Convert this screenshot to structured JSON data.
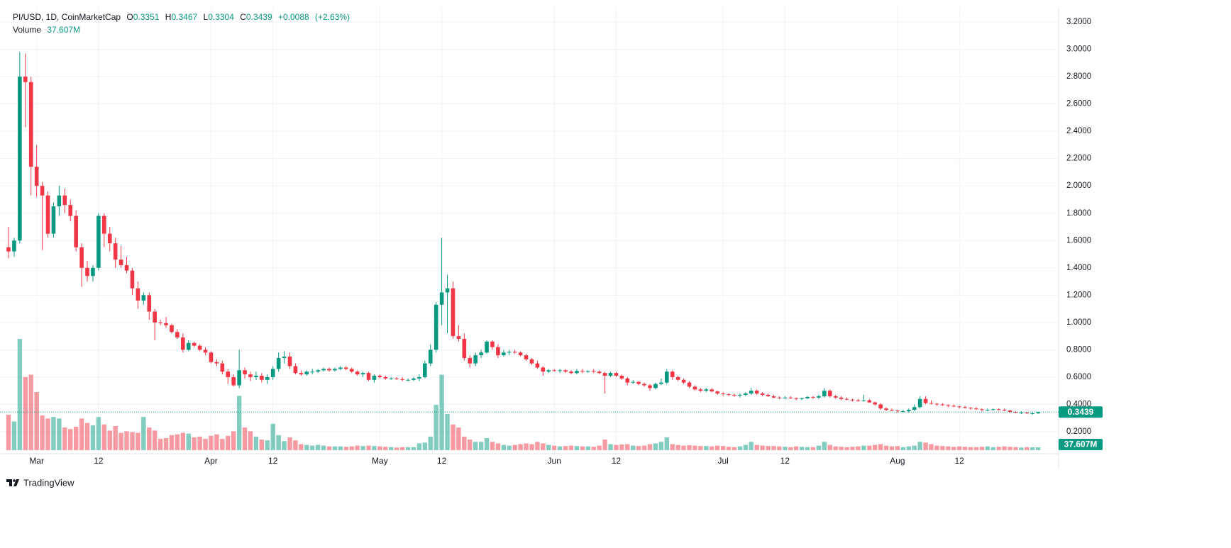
{
  "chart_data": {
    "type": "candlestick",
    "symbol": "PI/USD, 1D, CoinMarketCap",
    "legend_labels": {
      "open": "O",
      "high": "H",
      "low": "L",
      "close": "C"
    },
    "change": {
      "value": 0.0088,
      "label": "+0.0088"
    },
    "change_percent": {
      "value": 2.63,
      "label": "(+2.63%)"
    },
    "volume_title": "Volume",
    "volume_value_label": "37.607M",
    "up_color": "#089981",
    "down_color": "#f23645",
    "grid": true,
    "ylim": [
      0.2,
      3.2
    ],
    "yticks": [
      {
        "value": 0.2,
        "label": "0.2000"
      },
      {
        "value": 0.4,
        "label": "0.4000"
      },
      {
        "value": 0.6,
        "label": "0.6000"
      },
      {
        "value": 0.8,
        "label": "0.8000"
      },
      {
        "value": 1.0,
        "label": "1.0000"
      },
      {
        "value": 1.2,
        "label": "1.2000"
      },
      {
        "value": 1.4,
        "label": "1.4000"
      },
      {
        "value": 1.6,
        "label": "1.6000"
      },
      {
        "value": 1.8,
        "label": "1.8000"
      },
      {
        "value": 2.0,
        "label": "2.0000"
      },
      {
        "value": 2.2,
        "label": "2.2000"
      },
      {
        "value": 2.4,
        "label": "2.4000"
      },
      {
        "value": 2.6,
        "label": "2.6000"
      },
      {
        "value": 2.8,
        "label": "2.8000"
      },
      {
        "value": 3.0,
        "label": "3.0000"
      },
      {
        "value": 3.2,
        "label": "3.2000"
      }
    ],
    "categories": [
      null,
      null,
      null,
      null,
      null,
      "Mar",
      null,
      null,
      null,
      null,
      null,
      null,
      null,
      null,
      null,
      null,
      "12",
      null,
      null,
      null,
      null,
      null,
      null,
      null,
      null,
      null,
      null,
      null,
      null,
      null,
      null,
      null,
      null,
      null,
      null,
      null,
      "Apr",
      null,
      null,
      null,
      null,
      null,
      null,
      null,
      null,
      null,
      null,
      "12",
      null,
      null,
      null,
      null,
      null,
      null,
      null,
      null,
      null,
      null,
      null,
      null,
      null,
      null,
      null,
      null,
      null,
      null,
      "May",
      null,
      null,
      null,
      null,
      null,
      null,
      null,
      null,
      null,
      null,
      "12",
      null,
      null,
      null,
      null,
      null,
      null,
      null,
      null,
      null,
      null,
      null,
      null,
      null,
      null,
      null,
      null,
      null,
      null,
      null,
      "Jun",
      null,
      null,
      null,
      null,
      null,
      null,
      null,
      null,
      null,
      null,
      "12",
      null,
      null,
      null,
      null,
      null,
      null,
      null,
      null,
      null,
      null,
      null,
      null,
      null,
      null,
      null,
      null,
      null,
      null,
      "Jul",
      null,
      null,
      null,
      null,
      null,
      null,
      null,
      null,
      null,
      null,
      "12",
      null,
      null,
      null,
      null,
      null,
      null,
      null,
      null,
      null,
      null,
      null,
      null,
      null,
      null,
      null,
      null,
      null,
      null,
      null,
      "Aug",
      null,
      null,
      null,
      null,
      null,
      null,
      null,
      null,
      null,
      null,
      "12",
      null,
      null,
      null,
      null,
      null,
      null,
      null,
      null,
      null,
      null,
      null,
      null,
      null,
      null
    ],
    "open": [
      1.55,
      1.52,
      1.6,
      2.8,
      2.76,
      2.14,
      2.0,
      1.93,
      1.65,
      1.85,
      1.93,
      1.86,
      1.78,
      1.55,
      1.4,
      1.34,
      1.4,
      1.78,
      1.65,
      1.58,
      1.46,
      1.42,
      1.38,
      1.25,
      1.16,
      1.2,
      1.08,
      1.0,
      0.995,
      0.98,
      0.93,
      0.89,
      0.8,
      0.85,
      0.83,
      0.8,
      0.78,
      0.71,
      0.7,
      0.64,
      0.6,
      0.54,
      0.65,
      0.62,
      0.6,
      0.61,
      0.58,
      0.6,
      0.66,
      0.74,
      0.75,
      0.68,
      0.63,
      0.62,
      0.64,
      0.64,
      0.65,
      0.66,
      0.65,
      0.66,
      0.67,
      0.66,
      0.64,
      0.62,
      0.63,
      0.58,
      0.61,
      0.6,
      0.59,
      0.59,
      0.585,
      0.58,
      0.58,
      0.59,
      0.6,
      0.7,
      0.8,
      1.13,
      1.22,
      1.25,
      0.9,
      0.88,
      0.74,
      0.7,
      0.76,
      0.78,
      0.86,
      0.82,
      0.76,
      0.78,
      0.785,
      0.78,
      0.76,
      0.73,
      0.7,
      0.67,
      0.64,
      0.65,
      0.645,
      0.65,
      0.64,
      0.63,
      0.645,
      0.64,
      0.645,
      0.64,
      0.63,
      0.61,
      0.63,
      0.61,
      0.59,
      0.56,
      0.565,
      0.55,
      0.54,
      0.52,
      0.55,
      0.56,
      0.64,
      0.6,
      0.58,
      0.56,
      0.53,
      0.51,
      0.5,
      0.51,
      0.495,
      0.48,
      0.475,
      0.47,
      0.465,
      0.47,
      0.48,
      0.5,
      0.48,
      0.47,
      0.46,
      0.45,
      0.445,
      0.45,
      0.445,
      0.44,
      0.445,
      0.455,
      0.45,
      0.46,
      0.5,
      0.46,
      0.45,
      0.44,
      0.435,
      0.43,
      0.425,
      0.43,
      0.415,
      0.4,
      0.37,
      0.36,
      0.355,
      0.35,
      0.35,
      0.36,
      0.38,
      0.44,
      0.41,
      0.405,
      0.4,
      0.395,
      0.39,
      0.385,
      0.38,
      0.375,
      0.37,
      0.365,
      0.36,
      0.36,
      0.365,
      0.36,
      0.355,
      0.345,
      0.34,
      0.34,
      0.335,
      0.3351
    ],
    "high": [
      1.7,
      1.62,
      2.98,
      2.97,
      2.8,
      2.3,
      2.03,
      1.96,
      1.88,
      2.0,
      1.98,
      1.9,
      1.82,
      1.58,
      1.45,
      1.42,
      1.8,
      1.8,
      1.7,
      1.62,
      1.56,
      1.48,
      1.4,
      1.3,
      1.22,
      1.22,
      1.1,
      1.02,
      1.04,
      0.99,
      0.95,
      0.92,
      0.87,
      0.86,
      0.84,
      0.82,
      0.79,
      0.73,
      0.72,
      0.66,
      0.62,
      0.8,
      0.67,
      0.64,
      0.64,
      0.63,
      0.62,
      0.68,
      0.78,
      0.79,
      0.78,
      0.7,
      0.65,
      0.65,
      0.66,
      0.66,
      0.67,
      0.67,
      0.67,
      0.68,
      0.68,
      0.67,
      0.65,
      0.64,
      0.64,
      0.62,
      0.62,
      0.61,
      0.6,
      0.6,
      0.6,
      0.59,
      0.6,
      0.62,
      0.72,
      0.84,
      1.15,
      1.62,
      1.35,
      1.3,
      0.98,
      0.92,
      0.76,
      0.78,
      0.8,
      0.87,
      0.87,
      0.84,
      0.8,
      0.8,
      0.8,
      0.79,
      0.77,
      0.74,
      0.72,
      0.68,
      0.66,
      0.66,
      0.66,
      0.66,
      0.65,
      0.66,
      0.66,
      0.65,
      0.66,
      0.65,
      0.64,
      0.64,
      0.64,
      0.62,
      0.6,
      0.58,
      0.57,
      0.56,
      0.55,
      0.56,
      0.59,
      0.66,
      0.65,
      0.61,
      0.59,
      0.57,
      0.54,
      0.52,
      0.52,
      0.52,
      0.5,
      0.49,
      0.48,
      0.48,
      0.48,
      0.49,
      0.52,
      0.51,
      0.49,
      0.48,
      0.47,
      0.46,
      0.46,
      0.46,
      0.45,
      0.45,
      0.46,
      0.46,
      0.47,
      0.52,
      0.51,
      0.47,
      0.46,
      0.45,
      0.44,
      0.44,
      0.47,
      0.44,
      0.42,
      0.41,
      0.38,
      0.37,
      0.36,
      0.36,
      0.37,
      0.4,
      0.46,
      0.46,
      0.43,
      0.41,
      0.41,
      0.4,
      0.4,
      0.39,
      0.39,
      0.38,
      0.38,
      0.37,
      0.37,
      0.37,
      0.37,
      0.37,
      0.36,
      0.35,
      0.35,
      0.345,
      0.34,
      0.3467
    ],
    "low": [
      1.47,
      1.48,
      1.58,
      2.43,
      1.93,
      1.92,
      1.53,
      1.62,
      1.62,
      1.78,
      1.8,
      1.74,
      1.52,
      1.26,
      1.3,
      1.3,
      1.38,
      1.55,
      1.52,
      1.4,
      1.4,
      1.36,
      1.2,
      1.1,
      1.13,
      1.02,
      0.87,
      0.98,
      0.96,
      0.92,
      0.88,
      0.78,
      0.79,
      0.82,
      0.79,
      0.76,
      0.7,
      0.68,
      0.62,
      0.55,
      0.53,
      0.52,
      0.59,
      0.57,
      0.58,
      0.56,
      0.55,
      0.58,
      0.64,
      0.7,
      0.66,
      0.62,
      0.61,
      0.61,
      0.62,
      0.63,
      0.64,
      0.64,
      0.64,
      0.65,
      0.65,
      0.63,
      0.61,
      0.6,
      0.57,
      0.56,
      0.59,
      0.58,
      0.58,
      0.58,
      0.57,
      0.57,
      0.57,
      0.57,
      0.59,
      0.68,
      0.78,
      0.98,
      0.92,
      0.88,
      0.86,
      0.72,
      0.67,
      0.68,
      0.74,
      0.77,
      0.8,
      0.74,
      0.75,
      0.76,
      0.77,
      0.75,
      0.72,
      0.69,
      0.66,
      0.61,
      0.63,
      0.64,
      0.63,
      0.63,
      0.62,
      0.62,
      0.63,
      0.63,
      0.63,
      0.62,
      0.48,
      0.6,
      0.6,
      0.58,
      0.54,
      0.55,
      0.54,
      0.53,
      0.5,
      0.51,
      0.54,
      0.55,
      0.58,
      0.57,
      0.55,
      0.52,
      0.5,
      0.49,
      0.49,
      0.49,
      0.47,
      0.46,
      0.46,
      0.455,
      0.45,
      0.46,
      0.47,
      0.47,
      0.46,
      0.455,
      0.445,
      0.44,
      0.44,
      0.44,
      0.43,
      0.43,
      0.44,
      0.44,
      0.44,
      0.45,
      0.45,
      0.44,
      0.43,
      0.43,
      0.42,
      0.42,
      0.42,
      0.41,
      0.39,
      0.36,
      0.35,
      0.35,
      0.34,
      0.34,
      0.34,
      0.35,
      0.37,
      0.4,
      0.4,
      0.39,
      0.39,
      0.38,
      0.38,
      0.37,
      0.37,
      0.36,
      0.36,
      0.35,
      0.35,
      0.355,
      0.355,
      0.35,
      0.34,
      0.335,
      0.33,
      0.33,
      0.325,
      0.3304
    ],
    "close": [
      1.52,
      1.6,
      2.8,
      2.76,
      2.14,
      2.0,
      1.93,
      1.65,
      1.85,
      1.93,
      1.86,
      1.78,
      1.55,
      1.4,
      1.34,
      1.4,
      1.78,
      1.65,
      1.58,
      1.46,
      1.42,
      1.38,
      1.25,
      1.16,
      1.2,
      1.08,
      1.0,
      0.995,
      0.98,
      0.93,
      0.89,
      0.8,
      0.85,
      0.83,
      0.8,
      0.78,
      0.71,
      0.7,
      0.64,
      0.6,
      0.54,
      0.65,
      0.62,
      0.6,
      0.61,
      0.58,
      0.6,
      0.66,
      0.74,
      0.75,
      0.68,
      0.63,
      0.62,
      0.64,
      0.64,
      0.65,
      0.66,
      0.65,
      0.66,
      0.67,
      0.66,
      0.64,
      0.62,
      0.63,
      0.58,
      0.61,
      0.6,
      0.59,
      0.59,
      0.585,
      0.58,
      0.58,
      0.59,
      0.6,
      0.7,
      0.8,
      1.13,
      1.22,
      1.25,
      0.9,
      0.88,
      0.74,
      0.7,
      0.76,
      0.78,
      0.86,
      0.82,
      0.76,
      0.78,
      0.785,
      0.78,
      0.76,
      0.73,
      0.7,
      0.67,
      0.64,
      0.65,
      0.645,
      0.65,
      0.64,
      0.63,
      0.645,
      0.64,
      0.645,
      0.64,
      0.63,
      0.61,
      0.63,
      0.61,
      0.59,
      0.56,
      0.565,
      0.55,
      0.54,
      0.52,
      0.55,
      0.56,
      0.64,
      0.6,
      0.58,
      0.56,
      0.53,
      0.51,
      0.5,
      0.51,
      0.495,
      0.48,
      0.475,
      0.47,
      0.465,
      0.47,
      0.48,
      0.5,
      0.48,
      0.47,
      0.46,
      0.45,
      0.445,
      0.45,
      0.445,
      0.44,
      0.445,
      0.455,
      0.45,
      0.46,
      0.5,
      0.46,
      0.45,
      0.44,
      0.435,
      0.43,
      0.425,
      0.43,
      0.415,
      0.4,
      0.37,
      0.36,
      0.355,
      0.35,
      0.35,
      0.36,
      0.38,
      0.44,
      0.41,
      0.405,
      0.4,
      0.395,
      0.39,
      0.385,
      0.38,
      0.375,
      0.37,
      0.365,
      0.36,
      0.36,
      0.365,
      0.36,
      0.355,
      0.345,
      0.34,
      0.34,
      0.335,
      0.3351,
      0.3439
    ],
    "volume": [
      470,
      380,
      1475,
      970,
      1000,
      770,
      460,
      420,
      440,
      420,
      300,
      280,
      310,
      420,
      360,
      330,
      440,
      340,
      260,
      320,
      230,
      250,
      240,
      230,
      440,
      300,
      260,
      150,
      160,
      200,
      210,
      230,
      220,
      170,
      180,
      150,
      190,
      210,
      150,
      190,
      250,
      720,
      300,
      250,
      180,
      140,
      130,
      350,
      200,
      120,
      170,
      130,
      80,
      70,
      60,
      70,
      60,
      50,
      50,
      50,
      45,
      50,
      60,
      55,
      60,
      55,
      50,
      45,
      40,
      35,
      40,
      40,
      40,
      90,
      100,
      180,
      600,
      1000,
      480,
      340,
      300,
      180,
      140,
      110,
      110,
      160,
      110,
      90,
      70,
      60,
      70,
      80,
      90,
      80,
      110,
      90,
      70,
      60,
      50,
      55,
      60,
      55,
      50,
      50,
      45,
      60,
      140,
      80,
      70,
      75,
      80,
      60,
      55,
      60,
      80,
      90,
      110,
      170,
      80,
      70,
      60,
      65,
      60,
      55,
      55,
      50,
      60,
      55,
      45,
      40,
      50,
      70,
      110,
      70,
      60,
      55,
      55,
      50,
      45,
      40,
      50,
      45,
      40,
      40,
      60,
      110,
      70,
      50,
      45,
      40,
      45,
      50,
      60,
      60,
      70,
      80,
      60,
      50,
      55,
      40,
      50,
      60,
      110,
      100,
      80,
      60,
      55,
      50,
      45,
      50,
      45,
      40,
      40,
      45,
      50,
      40,
      45,
      50,
      45,
      40,
      35,
      40,
      38,
      37.607
    ]
  },
  "brand": "TradingView"
}
